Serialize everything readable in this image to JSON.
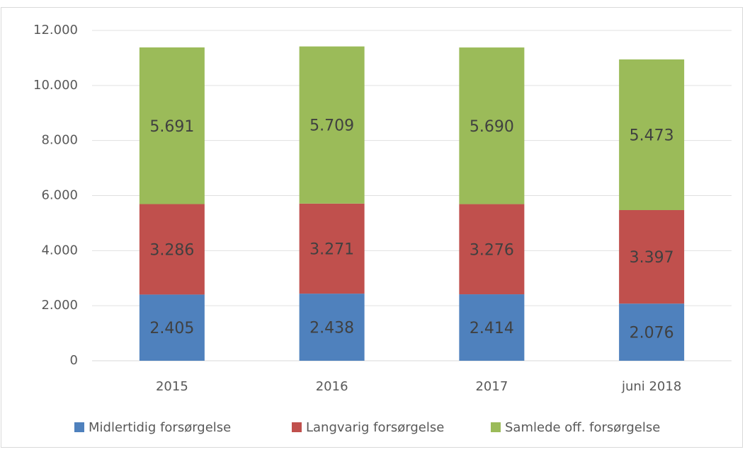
{
  "chart_data": {
    "type": "stacked_bar",
    "categories": [
      "2015",
      "2016",
      "2017",
      "juni 2018"
    ],
    "series": [
      {
        "name": "Midlertidig forsørgelse",
        "color": "#4f81bd",
        "values": [
          2405,
          2438,
          2414,
          2076
        ],
        "value_labels": [
          "2.405",
          "2.438",
          "2.414",
          "2.076"
        ]
      },
      {
        "name": "Langvarig forsørgelse",
        "color": "#c0504d",
        "values": [
          3286,
          3271,
          3276,
          3397
        ],
        "value_labels": [
          "3.286",
          "3.271",
          "3.276",
          "3.397"
        ]
      },
      {
        "name": "Samlede off. forsørgelse",
        "color": "#9bbb59",
        "values": [
          5691,
          5709,
          5690,
          5473
        ],
        "value_labels": [
          "5.691",
          "5.709",
          "5.690",
          "5.473"
        ]
      }
    ],
    "ylim": [
      0,
      12000
    ],
    "yticks": [
      0,
      {
        "value": 2000,
        "label": "2.000"
      },
      {
        "value": 4000,
        "label": "4.000"
      },
      {
        "value": 6000,
        "label": "6.000"
      },
      {
        "value": 8000,
        "label": "8.000"
      },
      {
        "value": 10000,
        "label": "10.000"
      },
      {
        "value": 12000,
        "label": "12.000"
      }
    ],
    "grid": true,
    "legend": "bottom"
  }
}
